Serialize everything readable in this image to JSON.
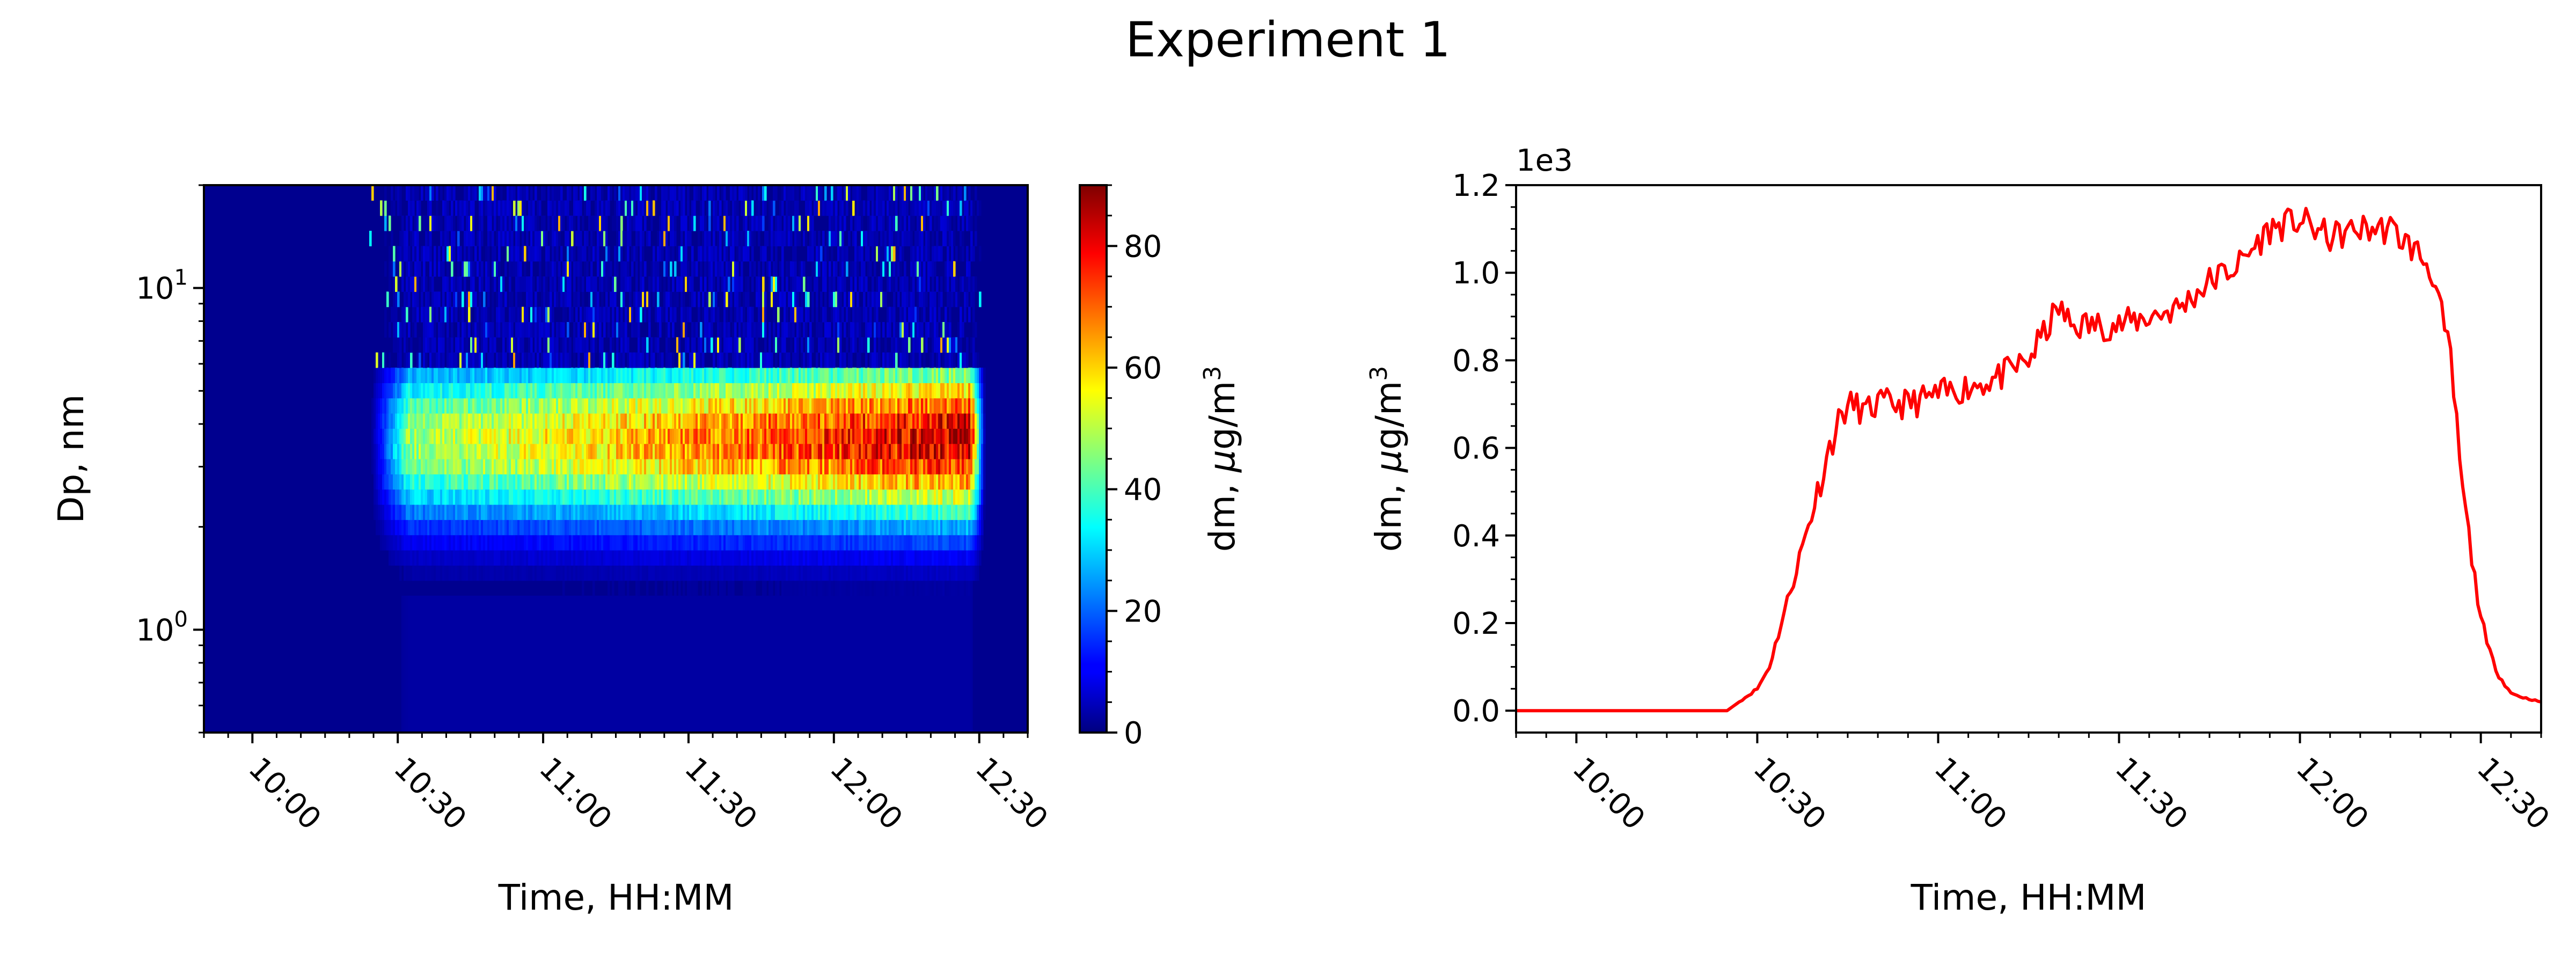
{
  "figure": {
    "title": "Experiment 1"
  },
  "chart_data": [
    {
      "type": "heatmap",
      "xlabel": "Time, HH:MM",
      "ylabel": "Dp, nm",
      "yscale": "log",
      "x_range": [
        "09:50",
        "12:40"
      ],
      "y_range": [
        0.5,
        20
      ],
      "x_ticks": [
        "10:00",
        "10:30",
        "11:00",
        "11:30",
        "12:00",
        "12:30"
      ],
      "y_ticks": [
        {
          "value": 1,
          "base": "10",
          "exp": "0"
        },
        {
          "value": 10,
          "base": "10",
          "exp": "1"
        }
      ],
      "colormap": "jet",
      "colorbar": {
        "label_pre": "dm, ",
        "label_mu": "μ",
        "label_post": "g/m",
        "label_sup": "3",
        "range": [
          0,
          90
        ],
        "ticks": [
          "0",
          "20",
          "40",
          "60",
          "80"
        ]
      },
      "event": {
        "start": "10:30",
        "end": "12:29",
        "peak_dp": 3.6,
        "peak_level": 85
      },
      "colors": {
        "background": "#00008f",
        "low": "#0000ff",
        "mid": "#00ffff",
        "high": "#ffff00",
        "max": "#ff0000"
      }
    },
    {
      "type": "line",
      "xlabel": "Time, HH:MM",
      "ylabel_pre": "dm, ",
      "ylabel_mu": "μ",
      "ylabel_post": "g/m",
      "ylabel_sup": "3",
      "offset_label": "1e3",
      "x_range": [
        "09:50",
        "12:40"
      ],
      "ylim": [
        -0.05,
        1.2
      ],
      "x_ticks": [
        "10:00",
        "10:30",
        "11:00",
        "11:30",
        "12:00",
        "12:30"
      ],
      "y_ticks": [
        "0.0",
        "0.2",
        "0.4",
        "0.6",
        "0.8",
        "1.0",
        "1.2"
      ],
      "series": [
        {
          "color": "#ff0000",
          "x": [
            "09:50",
            "10:00",
            "10:10",
            "10:20",
            "10:25",
            "10:28",
            "10:30",
            "10:32",
            "10:34",
            "10:36",
            "10:38",
            "10:40",
            "10:42",
            "10:44",
            "10:46",
            "10:48",
            "10:50",
            "10:55",
            "11:00",
            "11:05",
            "11:10",
            "11:15",
            "11:20",
            "11:22",
            "11:25",
            "11:30",
            "11:35",
            "11:40",
            "11:45",
            "11:50",
            "11:55",
            "12:00",
            "12:05",
            "12:10",
            "12:15",
            "12:20",
            "12:22",
            "12:25",
            "12:27",
            "12:29",
            "12:30",
            "12:31",
            "12:33",
            "12:35",
            "12:37",
            "12:40"
          ],
          "y": [
            0.0,
            0.0,
            0.0,
            0.0,
            0.0,
            0.03,
            0.05,
            0.1,
            0.2,
            0.3,
            0.4,
            0.5,
            0.6,
            0.68,
            0.7,
            0.68,
            0.7,
            0.7,
            0.72,
            0.74,
            0.76,
            0.8,
            0.92,
            0.88,
            0.88,
            0.88,
            0.9,
            0.92,
            0.98,
            1.02,
            1.1,
            1.12,
            1.08,
            1.1,
            1.1,
            1.04,
            1.0,
            0.8,
            0.5,
            0.3,
            0.22,
            0.15,
            0.08,
            0.04,
            0.03,
            0.02
          ]
        }
      ]
    }
  ]
}
